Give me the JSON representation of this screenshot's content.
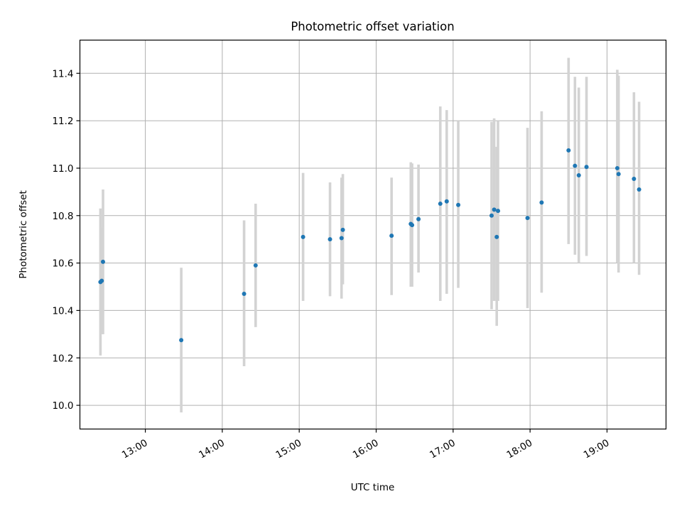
{
  "chart_data": {
    "type": "scatter",
    "title": "Photometric offset variation",
    "xlabel": "UTC time",
    "ylabel": "Photometric offset",
    "xlim": [
      "12:09",
      "19:46"
    ],
    "ylim": [
      9.9,
      11.54
    ],
    "x_ticks": [
      "13:00",
      "14:00",
      "15:00",
      "16:00",
      "17:00",
      "18:00",
      "19:00"
    ],
    "y_ticks": [
      "10.0",
      "10.2",
      "10.4",
      "10.6",
      "10.8",
      "11.0",
      "11.2",
      "11.4"
    ],
    "grid": true,
    "colors": {
      "point": "#1f77b4",
      "errorbar": "#d3d3d3",
      "grid": "#b0b0b0"
    },
    "points": [
      {
        "x": "12:25",
        "y": 10.52,
        "lo": 10.21,
        "hi": 10.83
      },
      {
        "x": "12:26",
        "y": 10.525,
        "lo": 10.3,
        "hi": 10.75
      },
      {
        "x": "12:27",
        "y": 10.605,
        "lo": 10.3,
        "hi": 10.91
      },
      {
        "x": "13:28",
        "y": 10.275,
        "lo": 9.97,
        "hi": 10.58
      },
      {
        "x": "14:17",
        "y": 10.47,
        "lo": 10.165,
        "hi": 10.78
      },
      {
        "x": "14:26",
        "y": 10.59,
        "lo": 10.33,
        "hi": 10.85
      },
      {
        "x": "15:03",
        "y": 10.71,
        "lo": 10.44,
        "hi": 10.98
      },
      {
        "x": "15:24",
        "y": 10.7,
        "lo": 10.46,
        "hi": 10.94
      },
      {
        "x": "15:33",
        "y": 10.705,
        "lo": 10.45,
        "hi": 10.96
      },
      {
        "x": "15:34",
        "y": 10.74,
        "lo": 10.51,
        "hi": 10.975
      },
      {
        "x": "16:12",
        "y": 10.715,
        "lo": 10.465,
        "hi": 10.96
      },
      {
        "x": "16:27",
        "y": 10.765,
        "lo": 10.5,
        "hi": 11.025
      },
      {
        "x": "16:28",
        "y": 10.76,
        "lo": 10.5,
        "hi": 11.02
      },
      {
        "x": "16:33",
        "y": 10.785,
        "lo": 10.56,
        "hi": 11.015
      },
      {
        "x": "16:50",
        "y": 10.85,
        "lo": 10.44,
        "hi": 11.26
      },
      {
        "x": "16:55",
        "y": 10.86,
        "lo": 10.47,
        "hi": 11.245
      },
      {
        "x": "17:04",
        "y": 10.845,
        "lo": 10.495,
        "hi": 11.2
      },
      {
        "x": "17:30",
        "y": 10.8,
        "lo": 10.405,
        "hi": 11.195
      },
      {
        "x": "17:32",
        "y": 10.825,
        "lo": 10.44,
        "hi": 11.21
      },
      {
        "x": "17:34",
        "y": 10.71,
        "lo": 10.335,
        "hi": 11.09
      },
      {
        "x": "17:35",
        "y": 10.82,
        "lo": 10.44,
        "hi": 11.2
      },
      {
        "x": "17:58",
        "y": 10.79,
        "lo": 10.41,
        "hi": 11.17
      },
      {
        "x": "18:09",
        "y": 10.855,
        "lo": 10.475,
        "hi": 11.24
      },
      {
        "x": "18:30",
        "y": 11.075,
        "lo": 10.68,
        "hi": 11.465
      },
      {
        "x": "18:35",
        "y": 11.01,
        "lo": 10.635,
        "hi": 11.385
      },
      {
        "x": "18:38",
        "y": 10.97,
        "lo": 10.6,
        "hi": 11.34
      },
      {
        "x": "18:44",
        "y": 11.005,
        "lo": 10.63,
        "hi": 11.385
      },
      {
        "x": "19:08",
        "y": 11.0,
        "lo": 10.6,
        "hi": 11.415
      },
      {
        "x": "19:09",
        "y": 10.975,
        "lo": 10.56,
        "hi": 11.39
      },
      {
        "x": "19:21",
        "y": 10.955,
        "lo": 10.6,
        "hi": 11.32
      },
      {
        "x": "19:25",
        "y": 10.91,
        "lo": 10.55,
        "hi": 11.28
      }
    ]
  }
}
